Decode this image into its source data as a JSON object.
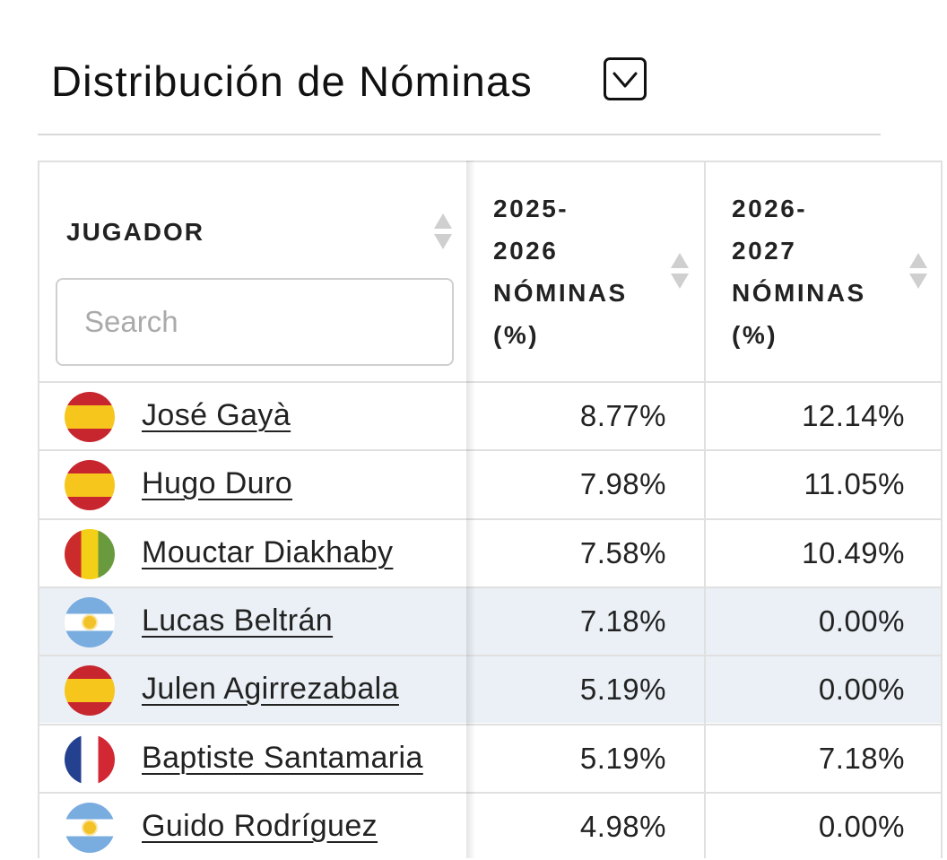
{
  "header": {
    "title": "Distribución de Nóminas",
    "toggle_icon": "chevron-down-icon"
  },
  "table": {
    "columns": {
      "player": "JUGADOR",
      "season_a": [
        "2025-",
        "2026",
        "NÓMINAS",
        "(%)"
      ],
      "season_b": [
        "2026-",
        "2027",
        "NÓMINAS",
        "(%)"
      ]
    },
    "search": {
      "placeholder": "Search",
      "value": ""
    },
    "rows": [
      {
        "name": "José Gayà",
        "flag": "spain",
        "a": "8.77%",
        "b": "12.14%",
        "highlighted": false
      },
      {
        "name": "Hugo Duro",
        "flag": "spain",
        "a": "7.98%",
        "b": "11.05%",
        "highlighted": false
      },
      {
        "name": "Mouctar Diakhaby",
        "flag": "guinea",
        "a": "7.58%",
        "b": "10.49%",
        "highlighted": false
      },
      {
        "name": "Lucas Beltrán",
        "flag": "argentina",
        "a": "7.18%",
        "b": "0.00%",
        "highlighted": true
      },
      {
        "name": "Julen Agirrezabala",
        "flag": "spain",
        "a": "5.19%",
        "b": "0.00%",
        "highlighted": true
      },
      {
        "name": "Baptiste Santamaria",
        "flag": "france",
        "a": "5.19%",
        "b": "7.18%",
        "highlighted": false
      },
      {
        "name": "Guido Rodríguez",
        "flag": "argentina",
        "a": "4.98%",
        "b": "0.00%",
        "highlighted": false
      }
    ]
  },
  "colors": {
    "highlight_row": "#eaf0f6",
    "border": "#e0e0e0",
    "text": "#222222"
  }
}
